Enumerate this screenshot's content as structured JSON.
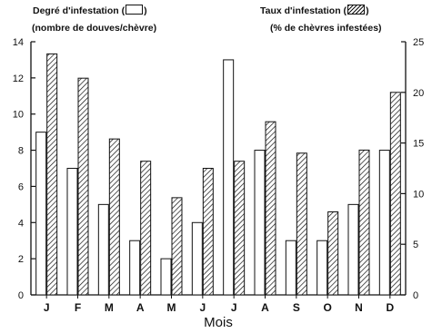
{
  "header": {
    "left_title_prefix": "Degré d'infestation (",
    "left_title_suffix": ")",
    "left_subtitle": "(nombre de douves/chèvre)",
    "right_title_prefix": "Taux d'infestation (",
    "right_title_suffix": ")",
    "right_subtitle": "(% de chèvres infestées)"
  },
  "chart_data": {
    "type": "bar",
    "xlabel": "Mois",
    "categories": [
      "J",
      "F",
      "M",
      "A",
      "M",
      "J",
      "J",
      "A",
      "S",
      "O",
      "N",
      "D"
    ],
    "y_left": {
      "ylim": [
        0,
        14
      ],
      "ticks": [
        0,
        2,
        4,
        6,
        8,
        10,
        12,
        14
      ]
    },
    "y_right": {
      "ylim": [
        0,
        25
      ],
      "ticks": [
        0,
        5,
        10,
        15,
        20,
        25
      ]
    },
    "series": [
      {
        "axis": "left",
        "fill": "white",
        "values": [
          9,
          7,
          5,
          3,
          2,
          4,
          13,
          8,
          3,
          3,
          5,
          8
        ]
      },
      {
        "axis": "right",
        "fill": "hatched",
        "values": [
          23.8,
          21.4,
          15.4,
          13.2,
          9.6,
          12.5,
          13.2,
          17.1,
          14.0,
          8.2,
          14.3,
          20.0
        ]
      }
    ],
    "grid": false,
    "legend": "top"
  }
}
